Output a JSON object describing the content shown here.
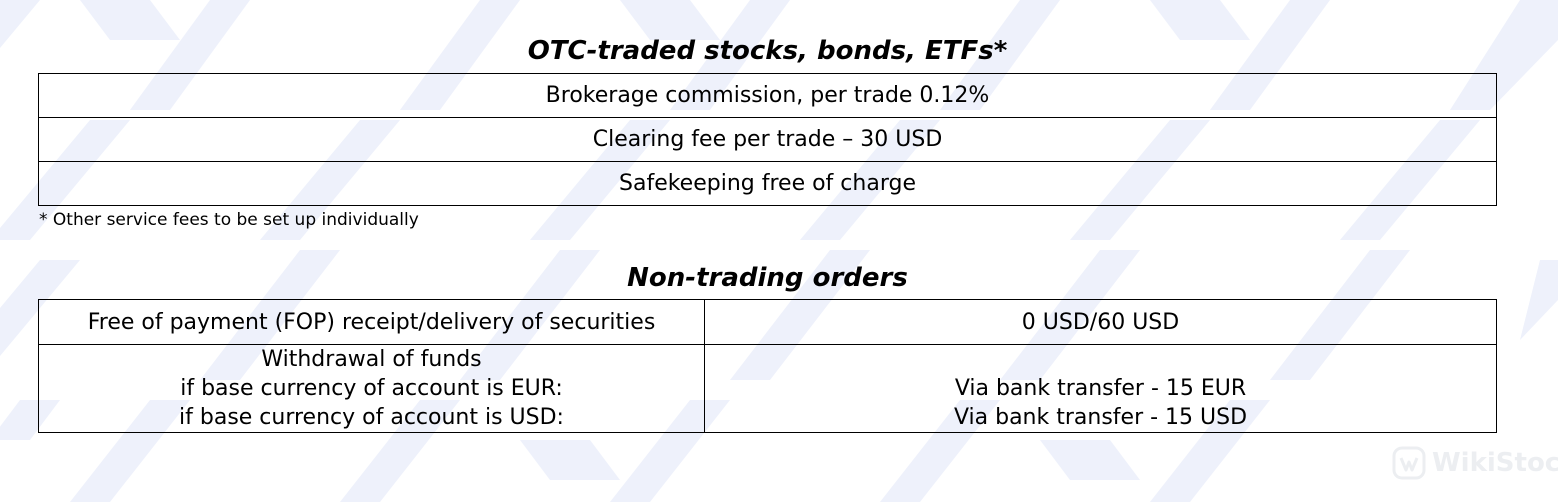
{
  "otc_section": {
    "title": "OTC-traded stocks, bonds, ETFs*",
    "rows": [
      "Brokerage commission, per trade 0.12%",
      "Clearing fee per trade – 30 USD",
      "Safekeeping free of charge"
    ],
    "footnote": "* Other service fees to be set up individually"
  },
  "non_trading_section": {
    "title": "Non-trading orders",
    "rows": [
      {
        "label_lines": [
          "Free of payment (FOP) receipt/delivery of securities"
        ],
        "value_lines": [
          "0 USD/60 USD"
        ]
      },
      {
        "label_lines": [
          "Withdrawal of funds",
          "if base currency of account is EUR:",
          "if base currency of account is USD:"
        ],
        "value_lines": [
          "Via bank transfer - 15 EUR",
          "Via bank transfer - 15 USD"
        ]
      }
    ]
  },
  "watermark": {
    "text": "WikiStock",
    "icon": "wikistock-logo-icon"
  },
  "colors": {
    "pattern": "#eef1fb",
    "border": "#000000",
    "watermark": "#c9cfd9"
  }
}
